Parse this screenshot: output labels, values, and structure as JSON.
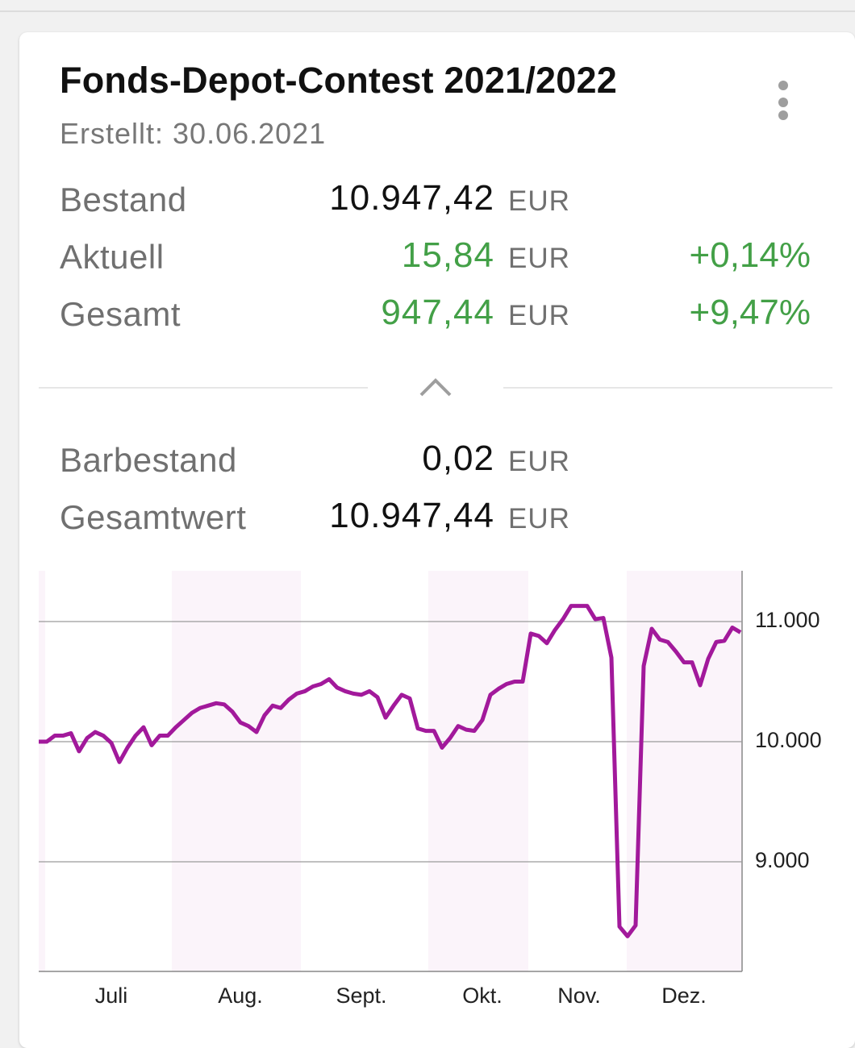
{
  "header": {
    "title": "Fonds-Depot-Contest 2021/2022",
    "created": "Erstellt: 30.06.2021"
  },
  "summary": [
    {
      "label": "Bestand",
      "value": "10.947,42",
      "unit": "EUR"
    },
    {
      "label": "Aktuell",
      "value": "15,84",
      "unit": "EUR",
      "change": "+0,14%"
    },
    {
      "label": "Gesamt",
      "value": "947,44",
      "unit": "EUR",
      "change": "+9,47%"
    }
  ],
  "cash": [
    {
      "label": "Barbestand",
      "value": "0,02",
      "unit": "EUR"
    },
    {
      "label": "Gesamtwert",
      "value": "10.947,44",
      "unit": "EUR"
    }
  ],
  "chart_data": {
    "type": "line",
    "color": "#a2199b",
    "categories": [
      null,
      null,
      null,
      null,
      null,
      null,
      null,
      null,
      null,
      "Juli",
      null,
      null,
      null,
      null,
      null,
      null,
      null,
      null,
      null,
      null,
      null,
      null,
      null,
      null,
      null,
      "Aug.",
      null,
      null,
      null,
      null,
      null,
      null,
      null,
      null,
      null,
      null,
      null,
      null,
      null,
      null,
      "Sept.",
      null,
      null,
      null,
      null,
      null,
      null,
      null,
      null,
      null,
      null,
      null,
      null,
      null,
      null,
      "Okt.",
      null,
      null,
      null,
      null,
      null,
      null,
      null,
      null,
      null,
      null,
      null,
      "Nov.",
      null,
      null,
      null,
      null,
      null,
      null,
      null,
      null,
      null,
      null,
      null,
      null,
      "Dez.",
      null,
      null,
      null,
      null,
      null,
      null,
      null
    ],
    "values": [
      10000,
      10000,
      10050,
      10050,
      10070,
      9920,
      10030,
      10080,
      10050,
      9990,
      9830,
      9950,
      10050,
      10120,
      9970,
      10050,
      10050,
      10120,
      10180,
      10240,
      10280,
      10300,
      10320,
      10310,
      10250,
      10160,
      10130,
      10080,
      10220,
      10300,
      10280,
      10350,
      10400,
      10420,
      10460,
      10480,
      10520,
      10450,
      10420,
      10400,
      10390,
      10420,
      10370,
      10200,
      10300,
      10390,
      10360,
      10110,
      10090,
      10090,
      9950,
      10030,
      10130,
      10100,
      10090,
      10180,
      10390,
      10440,
      10480,
      10500,
      10500,
      10900,
      10880,
      10820,
      10930,
      11020,
      11130,
      11130,
      11130,
      11020,
      11030,
      10700,
      8460,
      8380,
      8470,
      10630,
      10940,
      10850,
      10830,
      10750,
      10660,
      10660,
      10470,
      10690,
      10830,
      10840,
      10950,
      10910
    ],
    "ylim": [
      8087,
      11423
    ],
    "yticks": [
      {
        "value": 9000,
        "label": "9.000"
      },
      {
        "value": 10000,
        "label": "10.000"
      },
      {
        "value": 11000,
        "label": "11.000"
      }
    ],
    "grid": true
  }
}
